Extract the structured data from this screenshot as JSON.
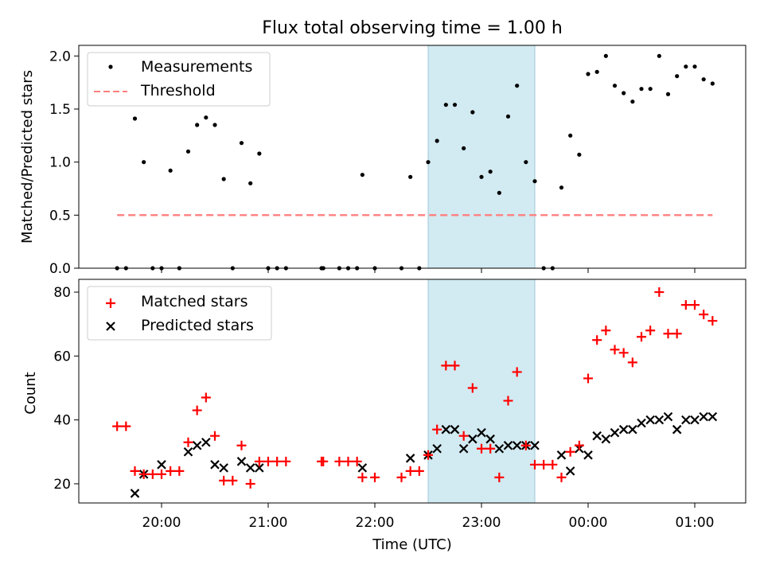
{
  "chart_data": [
    {
      "type": "scatter",
      "title": "Flux total observing time = 1.00 h",
      "ylabel": "Matched/Predicted stars",
      "xlabel": "",
      "ylim": [
        0,
        2.1
      ],
      "yticks": [
        "0.0",
        "0.5",
        "1.0",
        "1.5",
        "2.0"
      ],
      "legend_position": "upper-left",
      "highlight_band": {
        "start": "22:30",
        "end": "23:30",
        "color": "#add8e6"
      },
      "series": [
        {
          "name": "Measurements",
          "marker": "dot",
          "color": "#000000",
          "points": [
            [
              "19:35",
              0
            ],
            [
              "19:40",
              0
            ],
            [
              "19:45",
              1.41
            ],
            [
              "19:50",
              1.0
            ],
            [
              "19:55",
              0
            ],
            [
              "20:00",
              0
            ],
            [
              "20:05",
              0.92
            ],
            [
              "20:10",
              0
            ],
            [
              "20:15",
              1.1
            ],
            [
              "20:20",
              1.35
            ],
            [
              "20:25",
              1.42
            ],
            [
              "20:30",
              1.35
            ],
            [
              "20:35",
              0.84
            ],
            [
              "20:40",
              0
            ],
            [
              "20:45",
              1.18
            ],
            [
              "20:50",
              0.8
            ],
            [
              "20:55",
              1.08
            ],
            [
              "21:00",
              0
            ],
            [
              "21:05",
              0
            ],
            [
              "21:10",
              0
            ],
            [
              "21:30",
              0
            ],
            [
              "21:31",
              0
            ],
            [
              "21:40",
              0
            ],
            [
              "21:45",
              0
            ],
            [
              "21:50",
              0
            ],
            [
              "21:53",
              0.88
            ],
            [
              "22:00",
              0
            ],
            [
              "22:15",
              0
            ],
            [
              "22:20",
              0.86
            ],
            [
              "22:25",
              0
            ],
            [
              "22:30",
              1.0
            ],
            [
              "22:35",
              1.2
            ],
            [
              "22:40",
              1.54
            ],
            [
              "22:45",
              1.54
            ],
            [
              "22:50",
              1.13
            ],
            [
              "22:55",
              1.47
            ],
            [
              "23:00",
              0.86
            ],
            [
              "23:05",
              0.91
            ],
            [
              "23:10",
              0.71
            ],
            [
              "23:15",
              1.43
            ],
            [
              "23:20",
              1.72
            ],
            [
              "23:25",
              1.0
            ],
            [
              "23:30",
              0.82
            ],
            [
              "23:35",
              0
            ],
            [
              "23:40",
              0
            ],
            [
              "23:45",
              0.76
            ],
            [
              "23:50",
              1.25
            ],
            [
              "23:55",
              1.07
            ],
            [
              "00:00",
              1.83
            ],
            [
              "00:05",
              1.85
            ],
            [
              "00:10",
              2.0
            ],
            [
              "00:15",
              1.72
            ],
            [
              "00:20",
              1.65
            ],
            [
              "00:25",
              1.57
            ],
            [
              "00:30",
              1.69
            ],
            [
              "00:35",
              1.69
            ],
            [
              "00:40",
              2.0
            ],
            [
              "00:45",
              1.64
            ],
            [
              "00:50",
              1.81
            ],
            [
              "00:55",
              1.9
            ],
            [
              "01:00",
              1.9
            ],
            [
              "01:05",
              1.78
            ],
            [
              "01:10",
              1.74
            ]
          ]
        },
        {
          "name": "Threshold",
          "style": "dashed",
          "color": "#ff7f7f",
          "points": [
            [
              "19:35",
              0.5
            ],
            [
              "01:10",
              0.5
            ]
          ]
        }
      ]
    },
    {
      "type": "scatter",
      "title": "",
      "xlabel": "Time (UTC)",
      "ylabel": "Count",
      "ylim": [
        14,
        84
      ],
      "yticks": [
        "20",
        "40",
        "60",
        "80"
      ],
      "xticks": [
        "20:00",
        "21:00",
        "22:00",
        "23:00",
        "00:00",
        "01:00"
      ],
      "legend_position": "upper-left",
      "highlight_band": {
        "start": "22:30",
        "end": "23:30",
        "color": "#add8e6"
      },
      "series": [
        {
          "name": "Matched stars",
          "marker": "plus",
          "color": "#ff0000",
          "points": [
            [
              "19:35",
              38
            ],
            [
              "19:40",
              38
            ],
            [
              "19:45",
              24
            ],
            [
              "19:50",
              23
            ],
            [
              "19:55",
              23
            ],
            [
              "20:00",
              23
            ],
            [
              "20:05",
              24
            ],
            [
              "20:10",
              24
            ],
            [
              "20:15",
              33
            ],
            [
              "20:20",
              43
            ],
            [
              "20:25",
              47
            ],
            [
              "20:30",
              35
            ],
            [
              "20:35",
              21
            ],
            [
              "20:40",
              21
            ],
            [
              "20:45",
              32
            ],
            [
              "20:50",
              20
            ],
            [
              "20:55",
              27
            ],
            [
              "21:00",
              27
            ],
            [
              "21:05",
              27
            ],
            [
              "21:10",
              27
            ],
            [
              "21:30",
              27
            ],
            [
              "21:31",
              27
            ],
            [
              "21:40",
              27
            ],
            [
              "21:45",
              27
            ],
            [
              "21:50",
              27
            ],
            [
              "21:53",
              22
            ],
            [
              "22:00",
              22
            ],
            [
              "22:15",
              22
            ],
            [
              "22:20",
              24
            ],
            [
              "22:25",
              24
            ],
            [
              "22:30",
              29
            ],
            [
              "22:35",
              37
            ],
            [
              "22:40",
              57
            ],
            [
              "22:45",
              57
            ],
            [
              "22:50",
              35
            ],
            [
              "22:55",
              50
            ],
            [
              "23:00",
              31
            ],
            [
              "23:05",
              31
            ],
            [
              "23:10",
              22
            ],
            [
              "23:15",
              46
            ],
            [
              "23:20",
              55
            ],
            [
              "23:25",
              32
            ],
            [
              "23:30",
              26
            ],
            [
              "23:35",
              26
            ],
            [
              "23:40",
              26
            ],
            [
              "23:45",
              22
            ],
            [
              "23:50",
              30
            ],
            [
              "23:55",
              32
            ],
            [
              "00:00",
              53
            ],
            [
              "00:05",
              65
            ],
            [
              "00:10",
              68
            ],
            [
              "00:15",
              62
            ],
            [
              "00:20",
              61
            ],
            [
              "00:25",
              58
            ],
            [
              "00:30",
              66
            ],
            [
              "00:35",
              68
            ],
            [
              "00:40",
              80
            ],
            [
              "00:45",
              67
            ],
            [
              "00:50",
              67
            ],
            [
              "00:55",
              76
            ],
            [
              "01:00",
              76
            ],
            [
              "01:05",
              73
            ],
            [
              "01:10",
              71
            ]
          ]
        },
        {
          "name": "Predicted stars",
          "marker": "x",
          "color": "#000000",
          "points": [
            [
              "19:45",
              17
            ],
            [
              "19:50",
              23
            ],
            [
              "20:00",
              26
            ],
            [
              "20:15",
              30
            ],
            [
              "20:20",
              32
            ],
            [
              "20:25",
              33
            ],
            [
              "20:30",
              26
            ],
            [
              "20:35",
              25
            ],
            [
              "20:45",
              27
            ],
            [
              "20:50",
              25
            ],
            [
              "20:55",
              25
            ],
            [
              "21:53",
              25
            ],
            [
              "22:20",
              28
            ],
            [
              "22:30",
              29
            ],
            [
              "22:35",
              31
            ],
            [
              "22:40",
              37
            ],
            [
              "22:45",
              37
            ],
            [
              "22:50",
              31
            ],
            [
              "22:55",
              34
            ],
            [
              "23:00",
              36
            ],
            [
              "23:05",
              34
            ],
            [
              "23:10",
              31
            ],
            [
              "23:15",
              32
            ],
            [
              "23:20",
              32
            ],
            [
              "23:25",
              32
            ],
            [
              "23:30",
              32
            ],
            [
              "23:45",
              29
            ],
            [
              "23:50",
              24
            ],
            [
              "23:55",
              31
            ],
            [
              "00:00",
              29
            ],
            [
              "00:05",
              35
            ],
            [
              "00:10",
              34
            ],
            [
              "00:15",
              36
            ],
            [
              "00:20",
              37
            ],
            [
              "00:25",
              37
            ],
            [
              "00:30",
              39
            ],
            [
              "00:35",
              40
            ],
            [
              "00:40",
              40
            ],
            [
              "00:45",
              41
            ],
            [
              "00:50",
              37
            ],
            [
              "00:55",
              40
            ],
            [
              "01:00",
              40
            ],
            [
              "01:05",
              41
            ],
            [
              "01:10",
              41
            ]
          ]
        }
      ]
    }
  ]
}
